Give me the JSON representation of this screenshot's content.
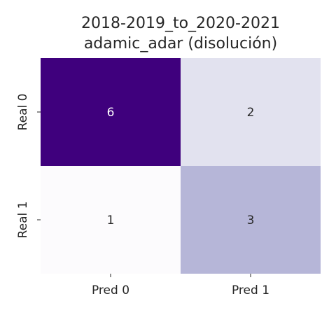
{
  "chart_data": {
    "type": "heatmap",
    "title_lines": [
      "2018-2019_to_2020-2021",
      "adamic_adar (disolución)"
    ],
    "x_tick_labels": [
      "Pred 0",
      "Pred 1"
    ],
    "y_tick_labels": [
      "Real 0",
      "Real 1"
    ],
    "matrix": [
      [
        6,
        2
      ],
      [
        1,
        3
      ]
    ],
    "colormap": "Purples",
    "value_range": [
      1,
      6
    ],
    "colorbar": false,
    "colors": {
      "low": "#fcfbfd",
      "high": "#3f007d",
      "text_dark": "#262626",
      "text_light": "#ffffff"
    }
  }
}
